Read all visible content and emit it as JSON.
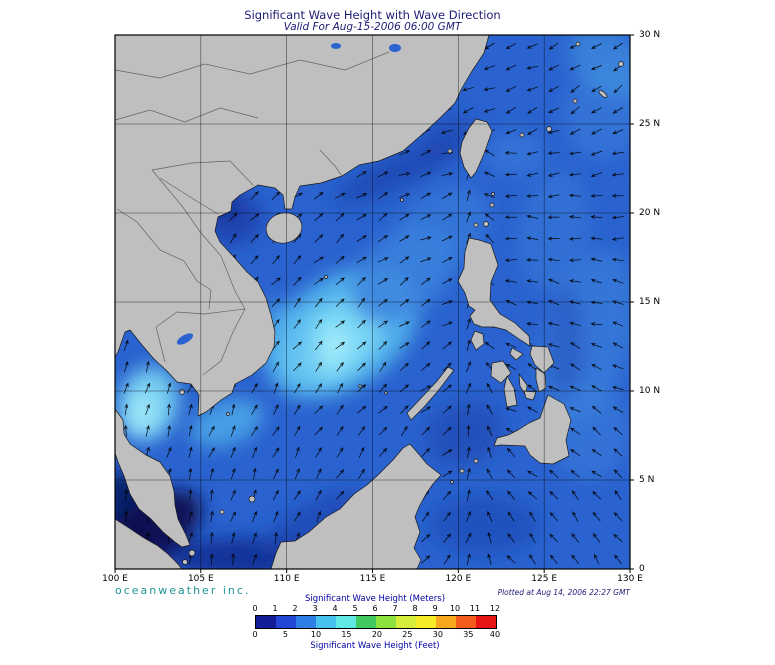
{
  "header": {
    "title": "Significant Wave Height with Wave Direction",
    "subtitle": "Valid For Aug-15-2006 06:00 GMT"
  },
  "footer": {
    "brand": "oceanweather inc.",
    "plotted": "Plotted at Aug 14, 2006 22:27 GMT"
  },
  "axes": {
    "lon_ticks": [
      "100 E",
      "105 E",
      "110 E",
      "115 E",
      "120 E",
      "125 E",
      "130 E"
    ],
    "lat_ticks": [
      "30 N",
      "25 N",
      "20 N",
      "15 N",
      "10 N",
      "5 N",
      "0"
    ]
  },
  "legend": {
    "meters_title": "Significant Wave Height (Meters)",
    "feet_title": "Significant Wave Height (Feet)",
    "meters_ticks": [
      0,
      1,
      2,
      3,
      4,
      5,
      6,
      7,
      8,
      9,
      10,
      11,
      12
    ],
    "feet_ticks": [
      0,
      5,
      10,
      15,
      20,
      25,
      30,
      35,
      40
    ],
    "colors": [
      "#141e96",
      "#2347d4",
      "#2f7ee6",
      "#47c2ef",
      "#62e8e4",
      "#3fc95f",
      "#8ee23f",
      "#d6ee3a",
      "#f6e926",
      "#f9a61f",
      "#f35b1c",
      "#e81515"
    ]
  },
  "map": {
    "wave_direction_field": {
      "south_china_sea": {
        "base_bearing": 48,
        "lon_gain": 2.2,
        "lat_gain": 1.4
      },
      "philippine_sea": {
        "base_bearing": 145,
        "lat_gain": 3.0
      },
      "east_china_sea": {
        "base_bearing": 205,
        "lon_gain": 1.5
      }
    }
  }
}
